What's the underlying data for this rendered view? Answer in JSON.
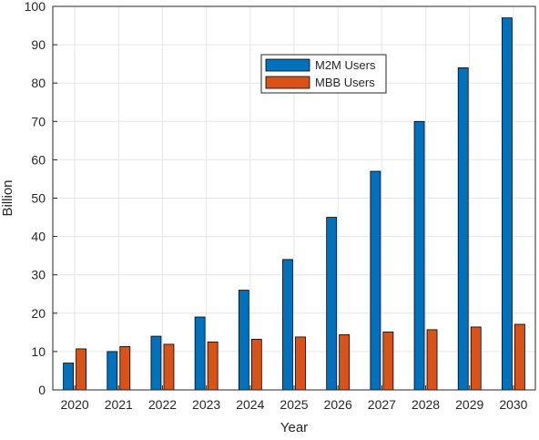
{
  "chart_data": {
    "type": "bar",
    "title": "",
    "xlabel": "Year",
    "ylabel": "Billion",
    "ylim": [
      0,
      100
    ],
    "yticks": [
      0,
      10,
      20,
      30,
      40,
      50,
      60,
      70,
      80,
      90,
      100
    ],
    "grid": true,
    "legend_position": "top-center",
    "categories": [
      "2020",
      "2021",
      "2022",
      "2023",
      "2024",
      "2025",
      "2026",
      "2027",
      "2028",
      "2029",
      "2030"
    ],
    "series": [
      {
        "name": "M2M Users",
        "color": "#0072BD",
        "values": [
          7,
          10,
          14,
          19,
          26,
          34,
          45,
          57,
          70,
          84,
          97
        ]
      },
      {
        "name": "MBB Users",
        "color": "#D95319",
        "values": [
          10.7,
          11.3,
          11.9,
          12.5,
          13.2,
          13.8,
          14.4,
          15.1,
          15.7,
          16.4,
          17.1
        ]
      }
    ]
  }
}
